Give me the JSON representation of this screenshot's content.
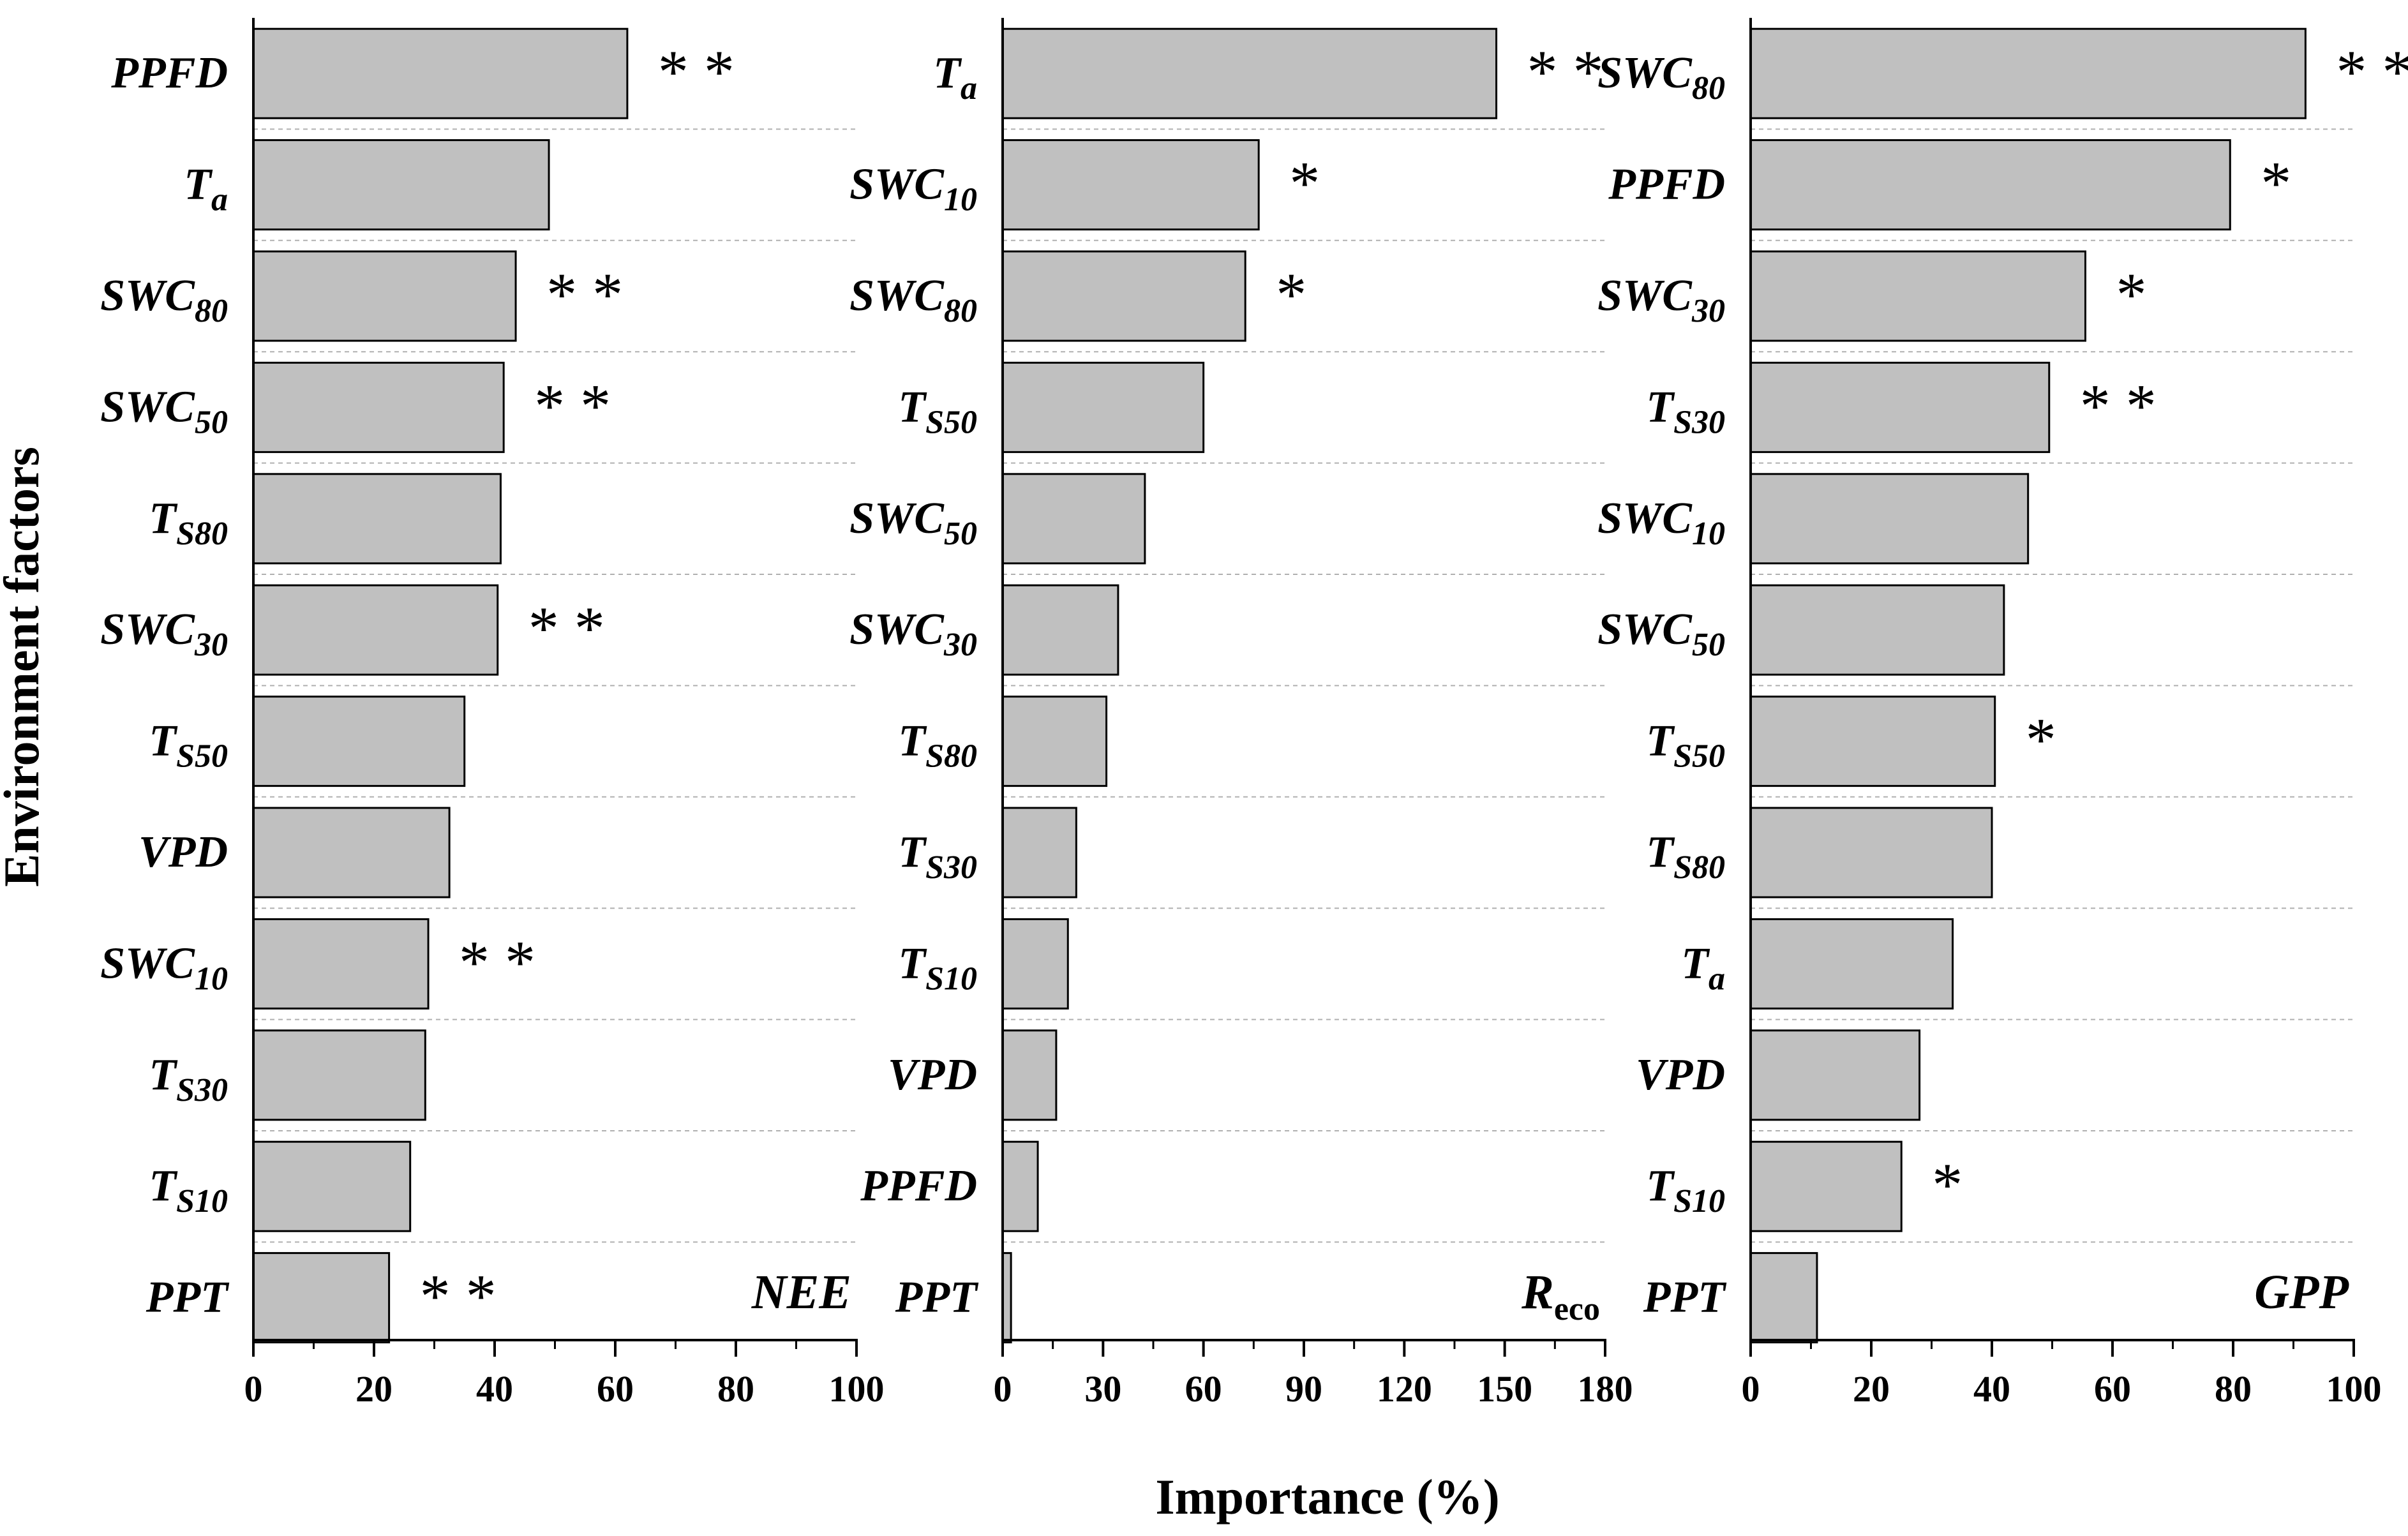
{
  "style": {
    "bar_fill": "#c0c0c0",
    "bar_stroke": "#000000",
    "grid_color": "#b0b0b0"
  },
  "labels": {
    "ylabel": "Environment factors",
    "xlabel": "Importance (%)"
  },
  "chart_data": [
    {
      "type": "bar",
      "orientation": "horizontal",
      "panel_label": {
        "main": "NEE",
        "sub": ""
      },
      "xlim": [
        0,
        100
      ],
      "xticks": [
        "0",
        "20",
        "40",
        "60",
        "80",
        "100"
      ],
      "xtick_values": [
        0,
        20,
        40,
        60,
        80,
        100
      ],
      "categories": [
        {
          "base": "PPFD",
          "sub": ""
        },
        {
          "base": "T",
          "sub": "a"
        },
        {
          "base": "SWC",
          "sub": "80"
        },
        {
          "base": "SWC",
          "sub": "50"
        },
        {
          "base": "T",
          "sub": "S80"
        },
        {
          "base": "SWC",
          "sub": "30"
        },
        {
          "base": "T",
          "sub": "S50"
        },
        {
          "base": "VPD",
          "sub": ""
        },
        {
          "base": "SWC",
          "sub": "10"
        },
        {
          "base": "T",
          "sub": "S30"
        },
        {
          "base": "T",
          "sub": "S10"
        },
        {
          "base": "PPT",
          "sub": ""
        }
      ],
      "values": [
        62,
        49,
        43.5,
        41.5,
        41,
        40.5,
        35,
        32.5,
        29,
        28.5,
        26,
        22.5
      ],
      "significance": [
        "**",
        "",
        "**",
        "**",
        "",
        "**",
        "",
        "",
        "**",
        "",
        "",
        "**"
      ]
    },
    {
      "type": "bar",
      "orientation": "horizontal",
      "panel_label": {
        "main": "R",
        "sub": "eco"
      },
      "xlim": [
        0,
        180
      ],
      "xticks": [
        "0",
        "30",
        "60",
        "90",
        "120",
        "150",
        "180"
      ],
      "xtick_values": [
        0,
        30,
        60,
        90,
        120,
        150,
        180
      ],
      "categories": [
        {
          "base": "T",
          "sub": "a"
        },
        {
          "base": "SWC",
          "sub": "10"
        },
        {
          "base": "SWC",
          "sub": "80"
        },
        {
          "base": "T",
          "sub": "S50"
        },
        {
          "base": "SWC",
          "sub": "50"
        },
        {
          "base": "SWC",
          "sub": "30"
        },
        {
          "base": "T",
          "sub": "S80"
        },
        {
          "base": "T",
          "sub": "S30"
        },
        {
          "base": "T",
          "sub": "S10"
        },
        {
          "base": "VPD",
          "sub": ""
        },
        {
          "base": "PPFD",
          "sub": ""
        },
        {
          "base": "PPT",
          "sub": ""
        }
      ],
      "values": [
        147.5,
        76.5,
        72.5,
        60,
        42.5,
        34.5,
        31,
        22,
        19.5,
        16,
        10.5,
        2.5
      ],
      "significance": [
        "**",
        "*",
        "*",
        "",
        "",
        "",
        "",
        "",
        "",
        "",
        "",
        ""
      ]
    },
    {
      "type": "bar",
      "orientation": "horizontal",
      "panel_label": {
        "main": "GPP",
        "sub": ""
      },
      "xlim": [
        0,
        100
      ],
      "xticks": [
        "0",
        "20",
        "40",
        "60",
        "80",
        "100"
      ],
      "xtick_values": [
        0,
        20,
        40,
        60,
        80,
        100
      ],
      "categories": [
        {
          "base": "SWC",
          "sub": "80"
        },
        {
          "base": "PPFD",
          "sub": ""
        },
        {
          "base": "SWC",
          "sub": "30"
        },
        {
          "base": "T",
          "sub": "S30"
        },
        {
          "base": "SWC",
          "sub": "10"
        },
        {
          "base": "SWC",
          "sub": "50"
        },
        {
          "base": "T",
          "sub": "S50"
        },
        {
          "base": "T",
          "sub": "S80"
        },
        {
          "base": "T",
          "sub": "a"
        },
        {
          "base": "VPD",
          "sub": ""
        },
        {
          "base": "T",
          "sub": "S10"
        },
        {
          "base": "PPT",
          "sub": ""
        }
      ],
      "values": [
        92,
        79.5,
        55.5,
        49.5,
        46,
        42,
        40.5,
        40,
        33.5,
        28,
        25,
        11
      ],
      "significance": [
        "**",
        "*",
        "*",
        "**",
        "",
        "",
        "*",
        "",
        "",
        "",
        "*",
        ""
      ]
    }
  ]
}
